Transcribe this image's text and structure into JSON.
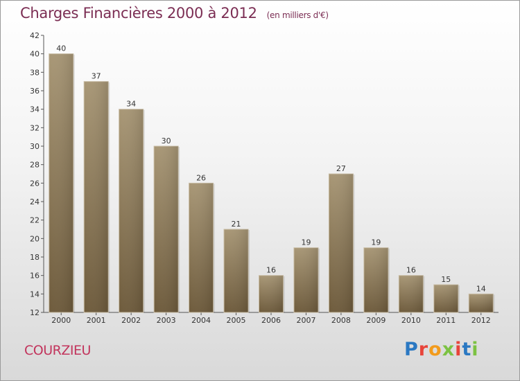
{
  "header": {
    "title": "Charges Financières 2000 à 2012",
    "subtitle": "(en milliers d'€)"
  },
  "footer": {
    "place": "COURZIEU",
    "logo": "Proxiti"
  },
  "colors": {
    "bar_light": "#a89776",
    "bar_dark": "#6e5b3c",
    "title": "#7b2d53",
    "place": "#c2345c",
    "logo": [
      "#2a78c2",
      "#e8443a",
      "#f29b1c",
      "#7cc242",
      "#e8443a",
      "#2a78c2",
      "#7cc242"
    ]
  },
  "chart_data": {
    "type": "bar",
    "title": "Charges Financières 2000 à 2012",
    "subtitle": "(en milliers d'€)",
    "categories": [
      "2000",
      "2001",
      "2002",
      "2003",
      "2004",
      "2005",
      "2006",
      "2007",
      "2008",
      "2009",
      "2010",
      "2011",
      "2012"
    ],
    "values": [
      40,
      37,
      34,
      30,
      26,
      21,
      16,
      19,
      27,
      19,
      16,
      15,
      14
    ],
    "ylim": [
      12,
      42
    ],
    "yticks": [
      12,
      14,
      16,
      18,
      20,
      22,
      24,
      26,
      28,
      30,
      32,
      34,
      36,
      38,
      40,
      42
    ],
    "xlabel": "",
    "ylabel": "",
    "grid": false,
    "legend": "none"
  }
}
